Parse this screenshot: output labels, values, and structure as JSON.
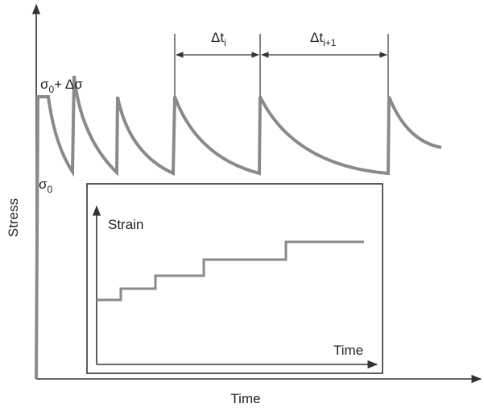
{
  "axes": {
    "y_label": "Stress",
    "x_label": "Time"
  },
  "labels": {
    "peak": {
      "symbol": "σ",
      "sub": "0",
      "rest": "+ Δσ"
    },
    "base": {
      "symbol": "σ",
      "sub": "0"
    },
    "interval_1": {
      "symbol": "Δt",
      "sub": "i"
    },
    "interval_2": {
      "symbol": "Δt",
      "sub": "i+1"
    }
  },
  "inset": {
    "y_label": "Strain",
    "x_label": "Time"
  }
}
